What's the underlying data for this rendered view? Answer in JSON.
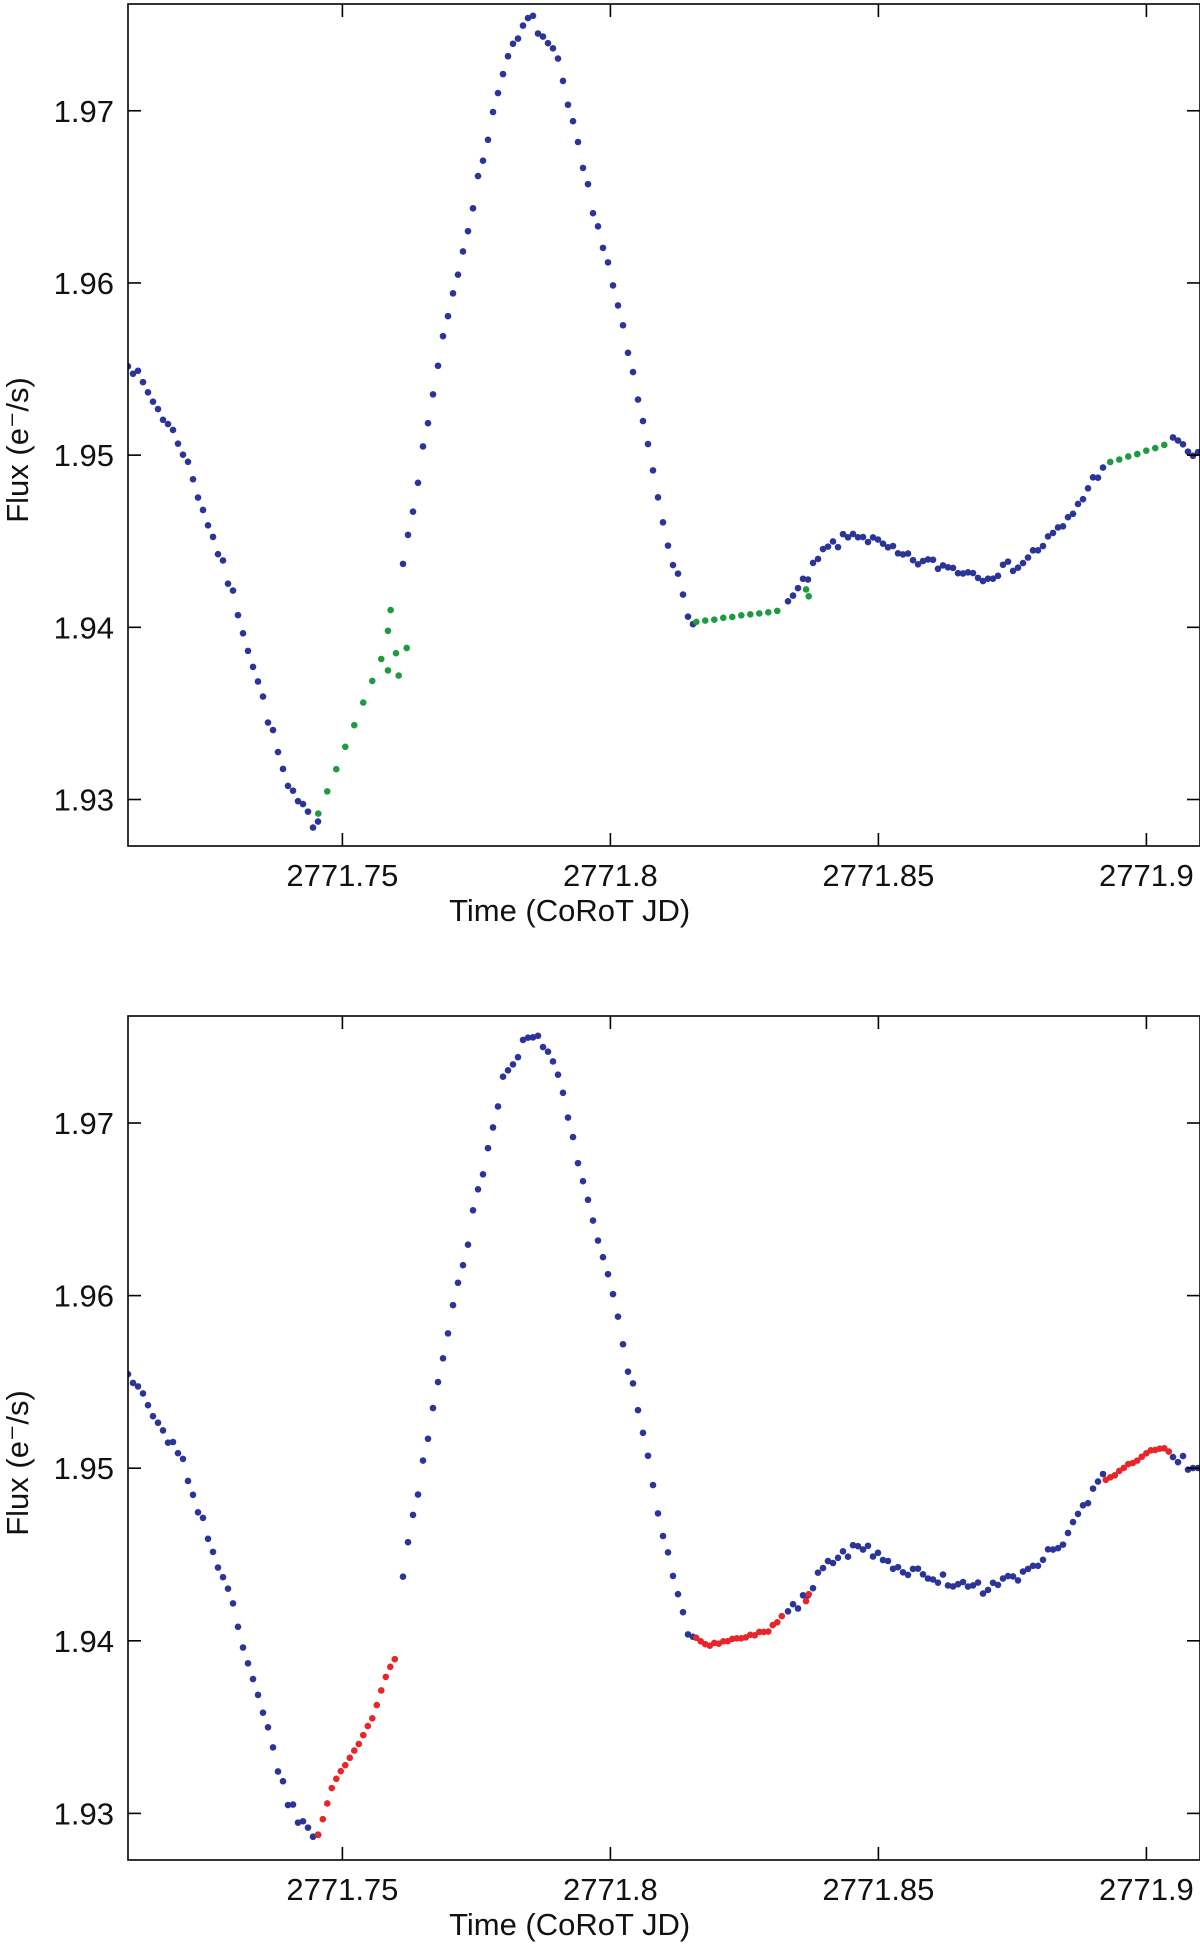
{
  "chart_data": [
    {
      "type": "scatter",
      "panel": "top",
      "title": "",
      "xlabel": "Time (CoRoT JD)",
      "ylabel": "Flux (e⁻/s)",
      "xlim": [
        2771.71,
        2771.91
      ],
      "ylim": [
        1.9273,
        1.9762
      ],
      "xticks": [
        2771.75,
        2771.8,
        2771.85,
        2771.9
      ],
      "xtick_labels": [
        "2771.75",
        "2771.8",
        "2771.85",
        "2771.9"
      ],
      "yticks": [
        1.93,
        1.94,
        1.95,
        1.96,
        1.97
      ],
      "ytick_labels": [
        "1.93",
        "1.94",
        "1.95",
        "1.96",
        "1.97"
      ],
      "grid": false,
      "series": [
        {
          "role": "observed",
          "color": "#2b3597",
          "density": 5.0,
          "noise": 0.00035,
          "anchors": [
            [
              2771.71,
              1.9555
            ],
            [
              2771.72,
              1.9505
            ],
            [
              2771.73,
              1.9415
            ],
            [
              2771.74,
              1.9305
            ],
            [
              2771.745,
              1.9285
            ],
            [
              2771.75,
              1.9335
            ],
            [
              2771.76,
              1.9415
            ],
            [
              2771.768,
              1.9555
            ],
            [
              2771.775,
              1.9655
            ],
            [
              2771.78,
              1.9725
            ],
            [
              2771.785,
              1.9755
            ],
            [
              2771.79,
              1.973
            ],
            [
              2771.795,
              1.9665
            ],
            [
              2771.8,
              1.9605
            ],
            [
              2771.805,
              1.9535
            ],
            [
              2771.81,
              1.946
            ],
            [
              2771.8145,
              1.9405
            ],
            [
              2771.832,
              1.941
            ],
            [
              2771.836,
              1.9425
            ],
            [
              2771.84,
              1.9445
            ],
            [
              2771.846,
              1.9455
            ],
            [
              2771.855,
              1.944
            ],
            [
              2771.863,
              1.9435
            ],
            [
              2771.87,
              1.943
            ],
            [
              2771.877,
              1.9438
            ],
            [
              2771.885,
              1.946
            ],
            [
              2771.892,
              1.9495
            ],
            [
              2771.905,
              1.9508
            ],
            [
              2771.91,
              1.9498
            ]
          ],
          "gaps": [
            [
              2771.7455,
              2771.7605
            ],
            [
              2771.8155,
              2771.8325
            ],
            [
              2771.8925,
              2771.9045
            ]
          ]
        },
        {
          "role": "filled",
          "color": "#1f9a42",
          "density": 9.0,
          "noise": 3e-05,
          "anchors": [
            [
              2771.7455,
              1.9292
            ],
            [
              2771.7573,
              1.9382
            ],
            [
              2771.8155,
              1.9403
            ],
            [
              2771.8325,
              1.941
            ],
            [
              2771.8925,
              1.9495
            ],
            [
              2771.9045,
              1.9507
            ]
          ],
          "gaps": [
            [
              2771.7574,
              2771.8154
            ],
            [
              2771.8326,
              2771.8924
            ]
          ]
        },
        {
          "role": "filled",
          "color": "#1f9a42",
          "points": [
            [
              2771.7585,
              1.9398
            ],
            [
              2771.7585,
              1.9375
            ],
            [
              2771.759,
              1.941
            ],
            [
              2771.76,
              1.9385
            ],
            [
              2771.7605,
              1.9372
            ],
            [
              2771.762,
              1.9388
            ],
            [
              2771.8365,
              1.9422
            ],
            [
              2771.837,
              1.9418
            ]
          ]
        }
      ]
    },
    {
      "type": "scatter",
      "panel": "bottom",
      "title": "",
      "xlabel": "Time (CoRoT JD)",
      "ylabel": "Flux (e⁻/s)",
      "xlim": [
        2771.71,
        2771.91
      ],
      "ylim": [
        1.9273,
        1.9762
      ],
      "xticks": [
        2771.75,
        2771.8,
        2771.85,
        2771.9
      ],
      "xtick_labels": [
        "2771.75",
        "2771.8",
        "2771.85",
        "2771.9"
      ],
      "yticks": [
        1.93,
        1.94,
        1.95,
        1.96,
        1.97
      ],
      "ytick_labels": [
        "1.93",
        "1.94",
        "1.95",
        "1.96",
        "1.97"
      ],
      "grid": false,
      "series": [
        {
          "role": "observed",
          "color": "#2b3597",
          "density": 5.0,
          "noise": 0.00035,
          "anchors": [
            [
              2771.71,
              1.9555
            ],
            [
              2771.72,
              1.9505
            ],
            [
              2771.73,
              1.9415
            ],
            [
              2771.74,
              1.9305
            ],
            [
              2771.745,
              1.9285
            ],
            [
              2771.75,
              1.9335
            ],
            [
              2771.76,
              1.9415
            ],
            [
              2771.768,
              1.9555
            ],
            [
              2771.775,
              1.9655
            ],
            [
              2771.78,
              1.9725
            ],
            [
              2771.785,
              1.9755
            ],
            [
              2771.79,
              1.973
            ],
            [
              2771.795,
              1.9665
            ],
            [
              2771.8,
              1.9605
            ],
            [
              2771.805,
              1.9535
            ],
            [
              2771.81,
              1.946
            ],
            [
              2771.8145,
              1.9405
            ],
            [
              2771.832,
              1.941
            ],
            [
              2771.836,
              1.9425
            ],
            [
              2771.84,
              1.9445
            ],
            [
              2771.846,
              1.9455
            ],
            [
              2771.855,
              1.944
            ],
            [
              2771.863,
              1.9435
            ],
            [
              2771.87,
              1.943
            ],
            [
              2771.877,
              1.9438
            ],
            [
              2771.885,
              1.946
            ],
            [
              2771.892,
              1.9495
            ],
            [
              2771.905,
              1.9508
            ],
            [
              2771.91,
              1.9498
            ]
          ],
          "gaps": [
            [
              2771.7455,
              2771.7605
            ],
            [
              2771.8155,
              2771.8325
            ],
            [
              2771.8925,
              2771.9045
            ]
          ]
        },
        {
          "role": "filled",
          "color": "#e8262a",
          "density": 4.5,
          "noise": 0.0001,
          "anchors": [
            [
              2771.7455,
              1.9288
            ],
            [
              2771.748,
              1.9315
            ],
            [
              2771.752,
              1.9335
            ],
            [
              2771.7555,
              1.9355
            ],
            [
              2771.758,
              1.9378
            ],
            [
              2771.7605,
              1.9395
            ],
            [
              2771.8155,
              1.9402
            ],
            [
              2771.818,
              1.9397
            ],
            [
              2771.824,
              1.9402
            ],
            [
              2771.829,
              1.9405
            ],
            [
              2771.8325,
              1.9415
            ],
            [
              2771.8925,
              1.9493
            ],
            [
              2771.897,
              1.9503
            ],
            [
              2771.902,
              1.9512
            ],
            [
              2771.9045,
              1.951
            ]
          ],
          "gaps": [
            [
              2771.7606,
              2771.8154
            ],
            [
              2771.8326,
              2771.8924
            ]
          ]
        },
        {
          "role": "filled",
          "color": "#e8262a",
          "points": [
            [
              2771.8365,
              1.9423
            ],
            [
              2771.837,
              1.9427
            ]
          ]
        }
      ]
    }
  ]
}
